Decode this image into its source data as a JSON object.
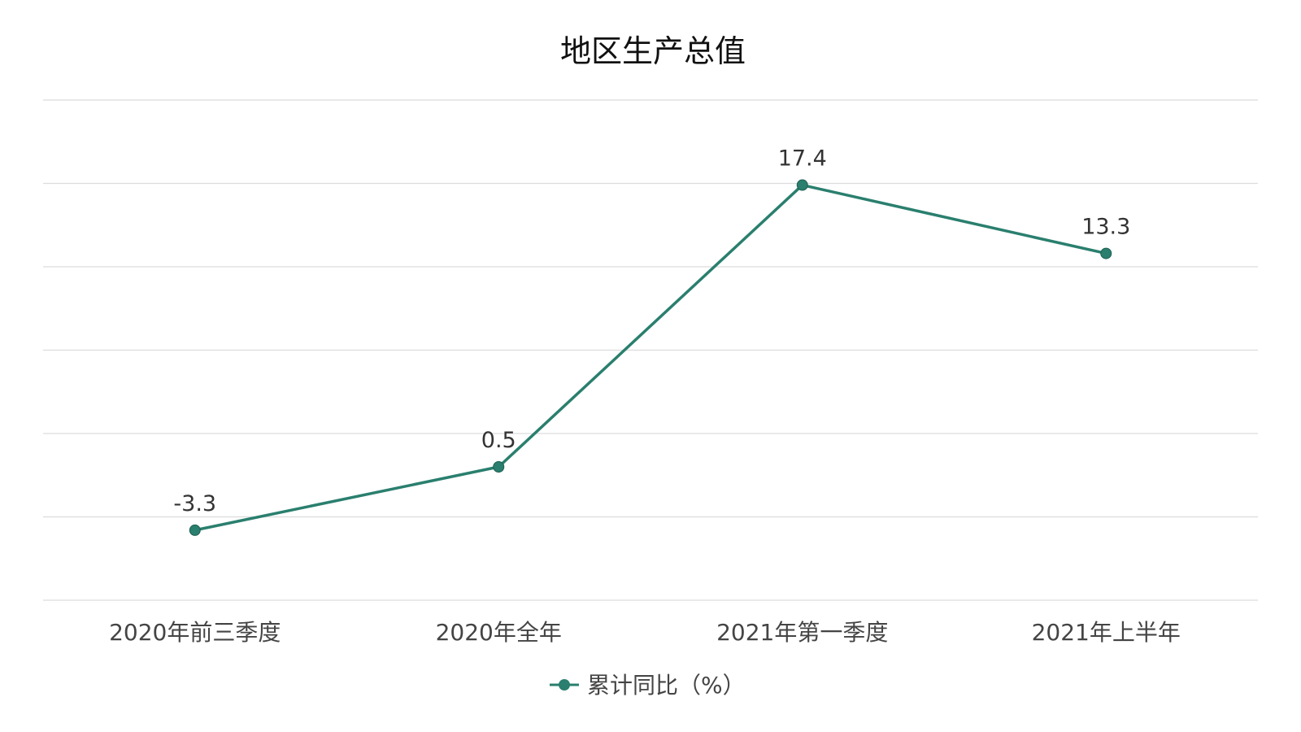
{
  "chart_data": {
    "type": "line",
    "title": "地区生产总值",
    "xlabel": "",
    "ylabel": "",
    "categories": [
      "2020年前三季度",
      "2020年全年",
      "2021年第一季度",
      "2021年上半年"
    ],
    "series": [
      {
        "name": "累计同比（%）",
        "values": [
          -3.3,
          0.5,
          17.4,
          13.3
        ],
        "color": "#2a7f6e"
      }
    ],
    "ylim": [
      -7.5,
      22.5
    ],
    "y_gridlines": [
      -7.5,
      -2.5,
      2.5,
      7.5,
      12.5,
      17.5,
      22.5
    ],
    "grid": true,
    "y_tick_labels_shown": false,
    "legend_position": "bottom-center",
    "data_labels": true
  }
}
